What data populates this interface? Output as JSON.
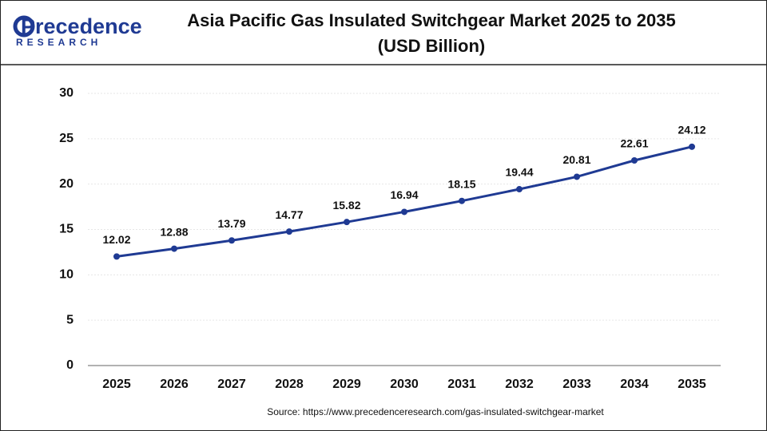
{
  "logo": {
    "name": "Precedence",
    "sub": "RESEARCH"
  },
  "chart_data": {
    "type": "line",
    "title": "Asia Pacific Gas Insulated Switchgear Market 2025 to 2035",
    "subtitle": "(USD Billion)",
    "categories": [
      "2025",
      "2026",
      "2027",
      "2028",
      "2029",
      "2030",
      "2031",
      "2032",
      "2033",
      "2034",
      "2035"
    ],
    "series": [
      {
        "name": "Market Size",
        "color": "#1f3a93",
        "values": [
          12.02,
          12.88,
          13.79,
          14.77,
          15.82,
          16.94,
          18.15,
          19.44,
          20.81,
          22.61,
          24.12
        ]
      }
    ],
    "ylim": [
      0,
      30
    ],
    "yticks": [
      0,
      5,
      10,
      15,
      20,
      25,
      30
    ],
    "grid": true,
    "source": "Source: https://www.precedenceresearch.com/gas-insulated-switchgear-market"
  }
}
